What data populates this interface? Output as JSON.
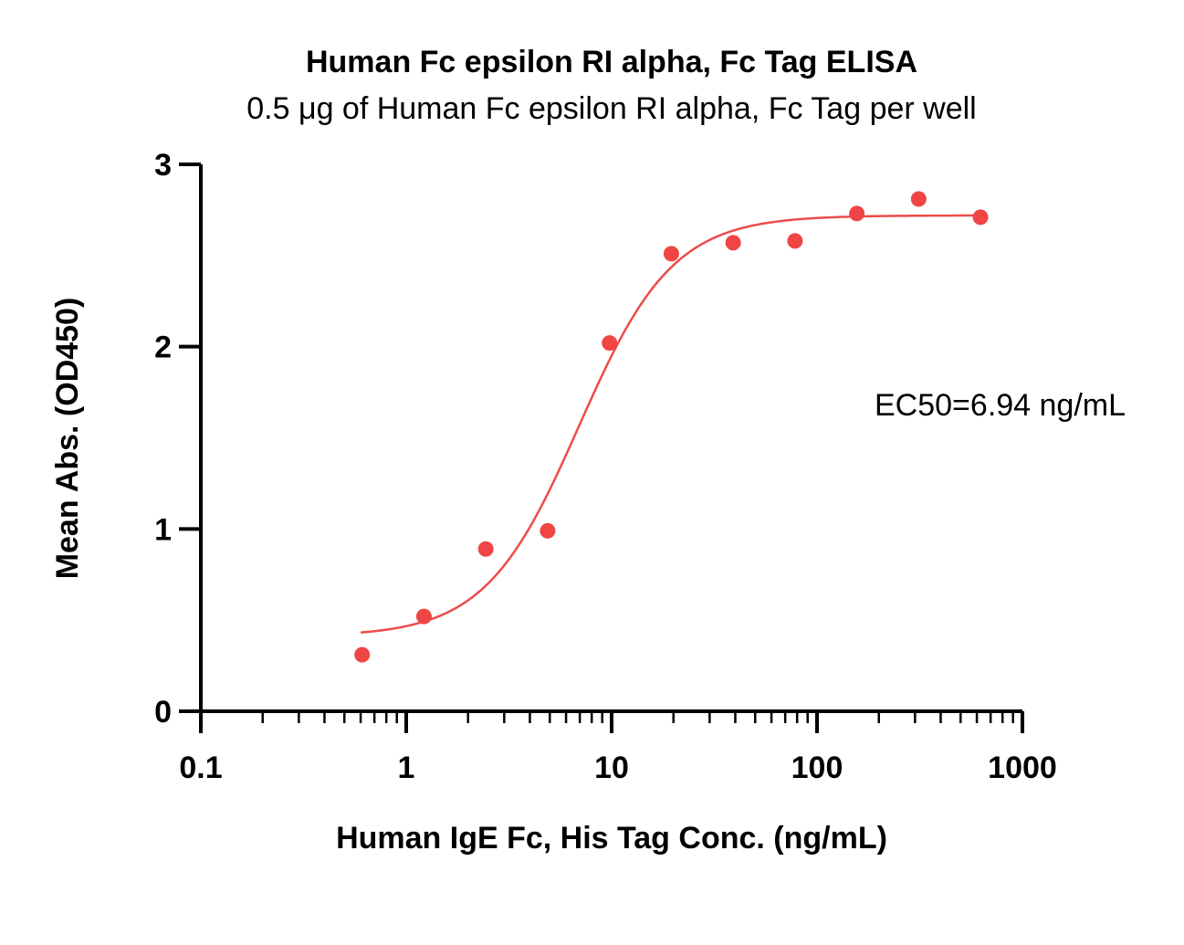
{
  "chart_data": {
    "type": "scatter",
    "title": "Human Fc epsilon RI alpha, Fc Tag ELISA",
    "subtitle": "0.5 μg of Human Fc epsilon RI alpha, Fc Tag per well",
    "xlabel": "Human IgE Fc, His Tag Conc. (ng/mL)",
    "ylabel": "Mean Abs. (OD450)",
    "x_scale": "log",
    "xlim": [
      0.1,
      1000
    ],
    "ylim": [
      0,
      3
    ],
    "x_ticks": [
      0.1,
      1,
      10,
      100,
      1000
    ],
    "x_tick_labels": [
      "0.1",
      "1",
      "10",
      "100",
      "1000"
    ],
    "y_ticks": [
      0,
      1,
      2,
      3
    ],
    "y_tick_labels": [
      "0",
      "1",
      "2",
      "3"
    ],
    "grid": false,
    "annotation": "EC50=6.94 ng/mL",
    "colors": {
      "points": "#f04545",
      "curve": "#ee4b4b",
      "axis": "#000000"
    },
    "series": [
      {
        "x": [
          0.61,
          1.22,
          2.44,
          4.88,
          9.77,
          19.53,
          39.06,
          78.13,
          156.25,
          312.5,
          625
        ],
        "y": [
          0.31,
          0.52,
          0.89,
          0.99,
          2.02,
          2.51,
          2.57,
          2.58,
          2.73,
          2.81,
          2.71
        ]
      }
    ],
    "fit": {
      "model": "4PL",
      "bottom": 0.41,
      "top": 2.72,
      "ec50": 6.94,
      "hill": 1.9,
      "x_range": [
        0.6,
        625
      ]
    }
  }
}
